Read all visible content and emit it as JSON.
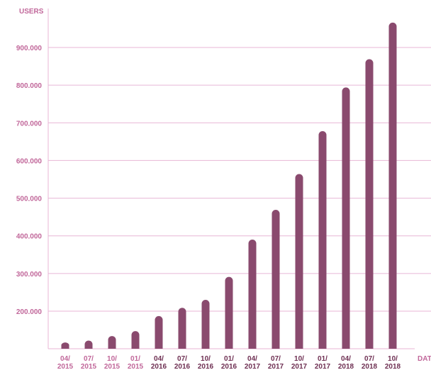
{
  "chart_data": {
    "type": "bar",
    "ylabel": "USERS",
    "xlabel": "DAT",
    "ylim": [
      100000,
      1000000
    ],
    "yticks": [
      200000,
      300000,
      400000,
      500000,
      600000,
      700000,
      800000,
      900000
    ],
    "ytick_labels": [
      "200.000",
      "300.000",
      "400.000",
      "500.000",
      "600.000",
      "700.000",
      "800.000",
      "900.000"
    ],
    "categories": [
      {
        "top": "04/",
        "bottom": "2015"
      },
      {
        "top": "07/",
        "bottom": "2015"
      },
      {
        "top": "10/",
        "bottom": "2015"
      },
      {
        "top": "01/",
        "bottom": "2015"
      },
      {
        "top": "04/",
        "bottom": "2016"
      },
      {
        "top": "07/",
        "bottom": "2016"
      },
      {
        "top": "10/",
        "bottom": "2016"
      },
      {
        "top": "01/",
        "bottom": "2016"
      },
      {
        "top": "04/",
        "bottom": "2017"
      },
      {
        "top": "07/",
        "bottom": "2017"
      },
      {
        "top": "10/",
        "bottom": "2017"
      },
      {
        "top": "01/",
        "bottom": "2017"
      },
      {
        "top": "04/",
        "bottom": "2018"
      },
      {
        "top": "07/",
        "bottom": "2018"
      },
      {
        "top": "10/",
        "bottom": "2018"
      }
    ],
    "values": [
      117000,
      122000,
      134000,
      147000,
      187000,
      209000,
      230000,
      291000,
      390000,
      469000,
      564000,
      678000,
      794000,
      869000,
      966000
    ],
    "grid": true,
    "colors": {
      "bar": "#8a4a6e",
      "grid": "#e8b6d6",
      "axis_text": "#c1679a",
      "xtick_pink": "#c1679a",
      "xtick_dark": "#6e2f52"
    },
    "dark_tick_from_index": 4
  }
}
